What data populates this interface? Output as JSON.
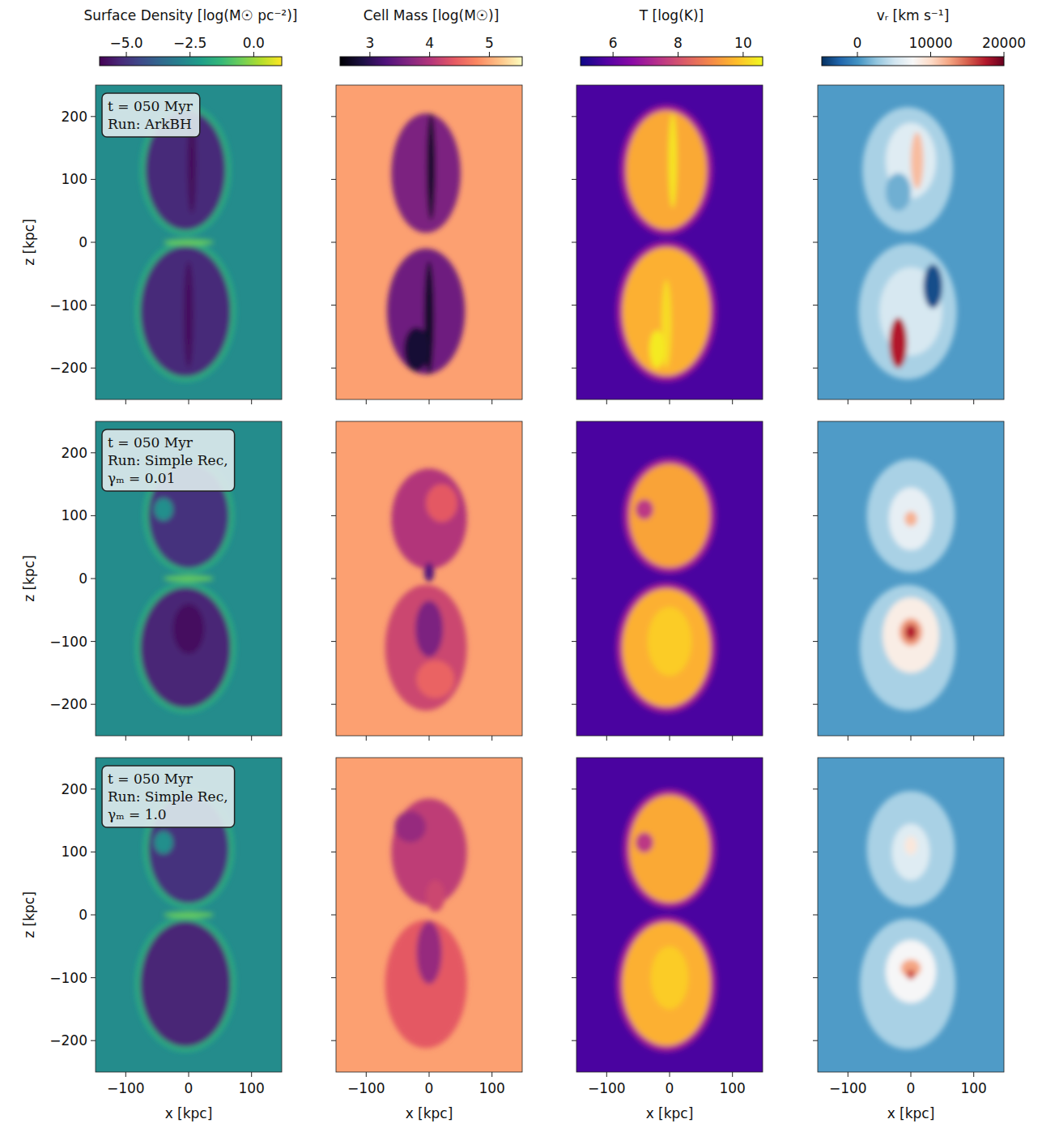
{
  "chart_data": [
    {
      "type": "heatmap",
      "color": "viridis",
      "xlim": [
        -148,
        148
      ],
      "ylim": [
        -250,
        250
      ],
      "xticks": [
        {
          "value": -100,
          "label": "−100"
        },
        0,
        100
      ],
      "yticks": [
        {
          "value": -200,
          "label": "−200"
        },
        {
          "value": -100,
          "label": "−100"
        },
        0,
        100,
        200
      ],
      "tick_labels": "y",
      "y_label": "z [kpc]",
      "annotation": [
        "t = 050 Myr",
        "Run: ArkBH"
      ],
      "colorbar": {
        "label": "Surface Density [log(M☉ pc⁻²)]",
        "range": [
          -6.05,
          1.1
        ],
        "ticks": [
          {
            "value": -5,
            "label": "−5.0"
          },
          {
            "value": -2.5,
            "label": "−2.5"
          },
          {
            "value": 0,
            "label": "0.0"
          }
        ]
      },
      "background": -2.6,
      "regions": [
        {
          "x": -5,
          "z": 115,
          "rx": 72,
          "rz": 104,
          "value": -1.6
        },
        {
          "x": -5,
          "z": 115,
          "rx": 64,
          "rz": 96,
          "value": -5.2
        },
        {
          "x": -5,
          "z": -110,
          "rx": 80,
          "rz": 112,
          "value": -1.6
        },
        {
          "x": -5,
          "z": -110,
          "rx": 72,
          "rz": 104,
          "value": -5.2
        },
        {
          "x": 5,
          "z": 125,
          "rx": 7,
          "rz": 80,
          "value": -5.9
        },
        {
          "x": 0,
          "z": -115,
          "rx": 8,
          "rz": 85,
          "value": -5.8
        },
        {
          "x": 0,
          "z": 0,
          "rx": 40,
          "rz": 5,
          "value": -0.6
        }
      ]
    },
    {
      "type": "heatmap",
      "color": "magma",
      "xlim": [
        -148,
        148
      ],
      "ylim": [
        -250,
        250
      ],
      "xticks": [
        {
          "value": -100,
          "label": "−100"
        },
        0,
        100
      ],
      "yticks": [
        {
          "value": -200,
          "label": "−200"
        },
        {
          "value": -100,
          "label": "−100"
        },
        0,
        100,
        200
      ],
      "tick_labels": false,
      "colorbar": {
        "label": "Cell Mass [log(M☉)]",
        "range": [
          2.5,
          5.55
        ],
        "ticks": [
          3,
          4,
          5
        ]
      },
      "background": 4.95,
      "regions": [
        {
          "x": -5,
          "z": 110,
          "rx": 55,
          "rz": 95,
          "value": 3.6
        },
        {
          "x": -5,
          "z": -110,
          "rx": 62,
          "rz": 100,
          "value": 3.5
        },
        {
          "x": 3,
          "z": 120,
          "rx": 7,
          "rz": 85,
          "value": 2.7
        },
        {
          "x": 0,
          "z": -120,
          "rx": 8,
          "rz": 90,
          "value": 2.7
        },
        {
          "x": -20,
          "z": -170,
          "rx": 20,
          "rz": 35,
          "value": 2.8
        }
      ]
    },
    {
      "type": "heatmap",
      "color": "plasma",
      "xlim": [
        -148,
        148
      ],
      "ylim": [
        -250,
        250
      ],
      "xticks": [
        {
          "value": -100,
          "label": "−100"
        },
        0,
        100
      ],
      "yticks": [
        {
          "value": -200,
          "label": "−200"
        },
        {
          "value": -100,
          "label": "−100"
        },
        0,
        100,
        200
      ],
      "tick_labels": false,
      "colorbar": {
        "label": "T [log(K)]",
        "range": [
          5.0,
          10.6
        ],
        "ticks": [
          6,
          8,
          10
        ]
      },
      "background": 5.7,
      "regions": [
        {
          "x": -5,
          "z": 115,
          "rx": 74,
          "rz": 104,
          "value": 7.0
        },
        {
          "x": -5,
          "z": 115,
          "rx": 64,
          "rz": 94,
          "value": 9.5
        },
        {
          "x": -5,
          "z": -110,
          "rx": 80,
          "rz": 112,
          "value": 7.0
        },
        {
          "x": -5,
          "z": -110,
          "rx": 70,
          "rz": 102,
          "value": 9.6
        },
        {
          "x": 5,
          "z": 130,
          "rx": 7,
          "rz": 75,
          "value": 10.3
        },
        {
          "x": -5,
          "z": -130,
          "rx": 8,
          "rz": 70,
          "value": 10.2
        },
        {
          "x": -20,
          "z": -170,
          "rx": 12,
          "rz": 30,
          "value": 10.4
        }
      ]
    },
    {
      "type": "heatmap",
      "color": "RdBu_r",
      "xlim": [
        -148,
        148
      ],
      "ylim": [
        -250,
        250
      ],
      "xticks": [
        {
          "value": -100,
          "label": "−100"
        },
        0,
        100
      ],
      "yticks": [
        {
          "value": -200,
          "label": "−200"
        },
        {
          "value": -100,
          "label": "−100"
        },
        0,
        100,
        200
      ],
      "tick_labels": false,
      "colorbar": {
        "label": "vᵣ [km s⁻¹]",
        "range": [
          -4860,
          20000
        ],
        "ticks": [
          0,
          10000,
          20000
        ]
      },
      "background": 500,
      "regions": [
        {
          "x": -5,
          "z": 115,
          "rx": 72,
          "rz": 100,
          "value": 3500
        },
        {
          "x": -5,
          "z": -110,
          "rx": 78,
          "rz": 108,
          "value": 3500
        },
        {
          "x": 0,
          "z": 130,
          "rx": 40,
          "rz": 60,
          "value": 6000
        },
        {
          "x": 0,
          "z": -110,
          "rx": 50,
          "rz": 70,
          "value": 5500
        },
        {
          "x": -20,
          "z": 80,
          "rx": 20,
          "rz": 30,
          "value": 1500
        },
        {
          "x": 10,
          "z": 130,
          "rx": 10,
          "rz": 45,
          "value": 11500
        },
        {
          "x": -20,
          "z": -160,
          "rx": 14,
          "rz": 40,
          "value": 17500
        },
        {
          "x": 35,
          "z": -70,
          "rx": 15,
          "rz": 35,
          "value": -3500
        }
      ]
    },
    {
      "type": "heatmap",
      "color": "viridis",
      "xlim": [
        -148,
        148
      ],
      "ylim": [
        -250,
        250
      ],
      "xticks": [
        {
          "value": -100,
          "label": "−100"
        },
        0,
        100
      ],
      "yticks": [
        {
          "value": -200,
          "label": "−200"
        },
        {
          "value": -100,
          "label": "−100"
        },
        0,
        100,
        200
      ],
      "tick_labels": "y",
      "y_label": "z [kpc]",
      "annotation": [
        "t = 050 Myr",
        "Run: Simple Rec,",
        "γₘ = 0.01"
      ],
      "background": -2.6,
      "regions": [
        {
          "x": 0,
          "z": 100,
          "rx": 72,
          "rz": 92,
          "value": -1.6
        },
        {
          "x": 0,
          "z": 100,
          "rx": 64,
          "rz": 84,
          "value": -5.0
        },
        {
          "x": -5,
          "z": -110,
          "rx": 80,
          "rz": 104,
          "value": -1.6
        },
        {
          "x": -5,
          "z": -110,
          "rx": 72,
          "rz": 96,
          "value": -5.3
        },
        {
          "x": 0,
          "z": -80,
          "rx": 25,
          "rz": 40,
          "value": -5.8
        },
        {
          "x": -40,
          "z": 110,
          "rx": 15,
          "rz": 18,
          "value": -2.5
        },
        {
          "x": 0,
          "z": 0,
          "rx": 40,
          "rz": 5,
          "value": -0.6
        }
      ]
    },
    {
      "type": "heatmap",
      "color": "magma",
      "xlim": [
        -148,
        148
      ],
      "ylim": [
        -250,
        250
      ],
      "xticks": [
        {
          "value": -100,
          "label": "−100"
        },
        0,
        100
      ],
      "yticks": [
        {
          "value": -200,
          "label": "−200"
        },
        {
          "value": -100,
          "label": "−100"
        },
        0,
        100,
        200
      ],
      "tick_labels": false,
      "background": 4.95,
      "regions": [
        {
          "x": 0,
          "z": 95,
          "rx": 60,
          "rz": 80,
          "value": 4.0
        },
        {
          "x": -5,
          "z": -110,
          "rx": 65,
          "rz": 100,
          "value": 4.2
        },
        {
          "x": 0,
          "z": -80,
          "rx": 22,
          "rz": 45,
          "value": 3.6
        },
        {
          "x": 0,
          "z": 10,
          "rx": 8,
          "rz": 15,
          "value": 3.3
        },
        {
          "x": 20,
          "z": 120,
          "rx": 25,
          "rz": 30,
          "value": 4.4
        },
        {
          "x": 10,
          "z": -160,
          "rx": 30,
          "rz": 30,
          "value": 4.5
        }
      ]
    },
    {
      "type": "heatmap",
      "color": "plasma",
      "xlim": [
        -148,
        148
      ],
      "ylim": [
        -250,
        250
      ],
      "xticks": [
        {
          "value": -100,
          "label": "−100"
        },
        0,
        100
      ],
      "yticks": [
        {
          "value": -200,
          "label": "−200"
        },
        {
          "value": -100,
          "label": "−100"
        },
        0,
        100,
        200
      ],
      "tick_labels": false,
      "background": 5.7,
      "regions": [
        {
          "x": 0,
          "z": 100,
          "rx": 74,
          "rz": 92,
          "value": 7.1
        },
        {
          "x": 0,
          "z": 100,
          "rx": 64,
          "rz": 82,
          "value": 9.4
        },
        {
          "x": -5,
          "z": -110,
          "rx": 80,
          "rz": 104,
          "value": 7.1
        },
        {
          "x": -5,
          "z": -110,
          "rx": 70,
          "rz": 94,
          "value": 9.6
        },
        {
          "x": 0,
          "z": -100,
          "rx": 35,
          "rz": 55,
          "value": 10.0
        },
        {
          "x": -40,
          "z": 110,
          "rx": 14,
          "rz": 16,
          "value": 7.5
        }
      ]
    },
    {
      "type": "heatmap",
      "color": "RdBu_r",
      "xlim": [
        -148,
        148
      ],
      "ylim": [
        -250,
        250
      ],
      "xticks": [
        {
          "value": -100,
          "label": "−100"
        },
        0,
        100
      ],
      "yticks": [
        {
          "value": -200,
          "label": "−200"
        },
        {
          "value": -100,
          "label": "−100"
        },
        0,
        100,
        200
      ],
      "tick_labels": false,
      "background": 500,
      "regions": [
        {
          "x": 0,
          "z": 100,
          "rx": 70,
          "rz": 90,
          "value": 3500
        },
        {
          "x": -5,
          "z": -110,
          "rx": 76,
          "rz": 100,
          "value": 3500
        },
        {
          "x": 0,
          "z": 95,
          "rx": 35,
          "rz": 50,
          "value": 6500
        },
        {
          "x": 0,
          "z": -90,
          "rx": 45,
          "rz": 60,
          "value": 8500
        },
        {
          "x": 0,
          "z": 95,
          "rx": 10,
          "rz": 12,
          "value": 12000
        },
        {
          "x": 0,
          "z": -85,
          "rx": 18,
          "rz": 22,
          "value": 13000
        },
        {
          "x": 0,
          "z": -85,
          "rx": 9,
          "rz": 12,
          "value": 17500
        }
      ]
    },
    {
      "type": "heatmap",
      "color": "viridis",
      "xlim": [
        -148,
        148
      ],
      "ylim": [
        -250,
        250
      ],
      "xticks": [
        {
          "value": -100,
          "label": "−100"
        },
        0,
        100
      ],
      "yticks": [
        {
          "value": -200,
          "label": "−200"
        },
        {
          "value": -100,
          "label": "−100"
        },
        0,
        100,
        200
      ],
      "tick_labels": true,
      "x_label": "x [kpc]",
      "y_label": "z [kpc]",
      "annotation": [
        "t = 050 Myr",
        "Run: Simple Rec,",
        "γₘ = 1.0"
      ],
      "background": -2.6,
      "regions": [
        {
          "x": 0,
          "z": 105,
          "rx": 72,
          "rz": 95,
          "value": -1.6
        },
        {
          "x": 0,
          "z": 105,
          "rx": 64,
          "rz": 87,
          "value": -5.0
        },
        {
          "x": -5,
          "z": -110,
          "rx": 80,
          "rz": 108,
          "value": -1.6
        },
        {
          "x": -5,
          "z": -110,
          "rx": 72,
          "rz": 100,
          "value": -5.3
        },
        {
          "x": -40,
          "z": 115,
          "rx": 15,
          "rz": 18,
          "value": -2.5
        },
        {
          "x": 0,
          "z": 0,
          "rx": 40,
          "rz": 5,
          "value": -0.6
        }
      ]
    },
    {
      "type": "heatmap",
      "color": "magma",
      "xlim": [
        -148,
        148
      ],
      "ylim": [
        -250,
        250
      ],
      "xticks": [
        {
          "value": -100,
          "label": "−100"
        },
        0,
        100
      ],
      "yticks": [
        {
          "value": -200,
          "label": "−200"
        },
        {
          "value": -100,
          "label": "−100"
        },
        0,
        100,
        200
      ],
      "tick_labels": "x",
      "x_label": "x [kpc]",
      "background": 4.95,
      "regions": [
        {
          "x": 0,
          "z": 100,
          "rx": 60,
          "rz": 85,
          "value": 4.1
        },
        {
          "x": -5,
          "z": -110,
          "rx": 65,
          "rz": 102,
          "value": 4.4
        },
        {
          "x": 0,
          "z": -60,
          "rx": 20,
          "rz": 50,
          "value": 3.8
        },
        {
          "x": -30,
          "z": 140,
          "rx": 25,
          "rz": 25,
          "value": 3.8
        },
        {
          "x": 10,
          "z": 30,
          "rx": 15,
          "rz": 25,
          "value": 4.2
        }
      ]
    },
    {
      "type": "heatmap",
      "color": "plasma",
      "xlim": [
        -148,
        148
      ],
      "ylim": [
        -250,
        250
      ],
      "xticks": [
        {
          "value": -100,
          "label": "−100"
        },
        0,
        100
      ],
      "yticks": [
        {
          "value": -200,
          "label": "−200"
        },
        {
          "value": -100,
          "label": "−100"
        },
        0,
        100,
        200
      ],
      "tick_labels": "x",
      "x_label": "x [kpc]",
      "background": 5.7,
      "regions": [
        {
          "x": 0,
          "z": 105,
          "rx": 74,
          "rz": 95,
          "value": 7.1
        },
        {
          "x": 0,
          "z": 105,
          "rx": 64,
          "rz": 85,
          "value": 9.5
        },
        {
          "x": -5,
          "z": -110,
          "rx": 80,
          "rz": 108,
          "value": 7.1
        },
        {
          "x": -5,
          "z": -110,
          "rx": 70,
          "rz": 98,
          "value": 9.6
        },
        {
          "x": -40,
          "z": 115,
          "rx": 14,
          "rz": 16,
          "value": 7.5
        },
        {
          "x": 0,
          "z": -100,
          "rx": 30,
          "rz": 50,
          "value": 10.0
        }
      ]
    },
    {
      "type": "heatmap",
      "color": "RdBu_r",
      "xlim": [
        -148,
        148
      ],
      "ylim": [
        -250,
        250
      ],
      "xticks": [
        {
          "value": -100,
          "label": "−100"
        },
        0,
        100
      ],
      "yticks": [
        {
          "value": -200,
          "label": "−200"
        },
        {
          "value": -100,
          "label": "−100"
        },
        0,
        100,
        200
      ],
      "tick_labels": "x",
      "x_label": "x [kpc]",
      "background": 500,
      "regions": [
        {
          "x": 0,
          "z": 105,
          "rx": 70,
          "rz": 92,
          "value": 3500
        },
        {
          "x": -5,
          "z": -110,
          "rx": 76,
          "rz": 104,
          "value": 3500
        },
        {
          "x": 0,
          "z": 100,
          "rx": 30,
          "rz": 45,
          "value": 6000
        },
        {
          "x": 0,
          "z": -90,
          "rx": 40,
          "rz": 50,
          "value": 7500
        },
        {
          "x": 0,
          "z": 110,
          "rx": 10,
          "rz": 15,
          "value": 9000
        },
        {
          "x": 0,
          "z": -85,
          "rx": 16,
          "rz": 14,
          "value": 12500
        },
        {
          "x": 0,
          "z": -95,
          "rx": 7,
          "rz": 8,
          "value": 15500
        }
      ]
    }
  ]
}
